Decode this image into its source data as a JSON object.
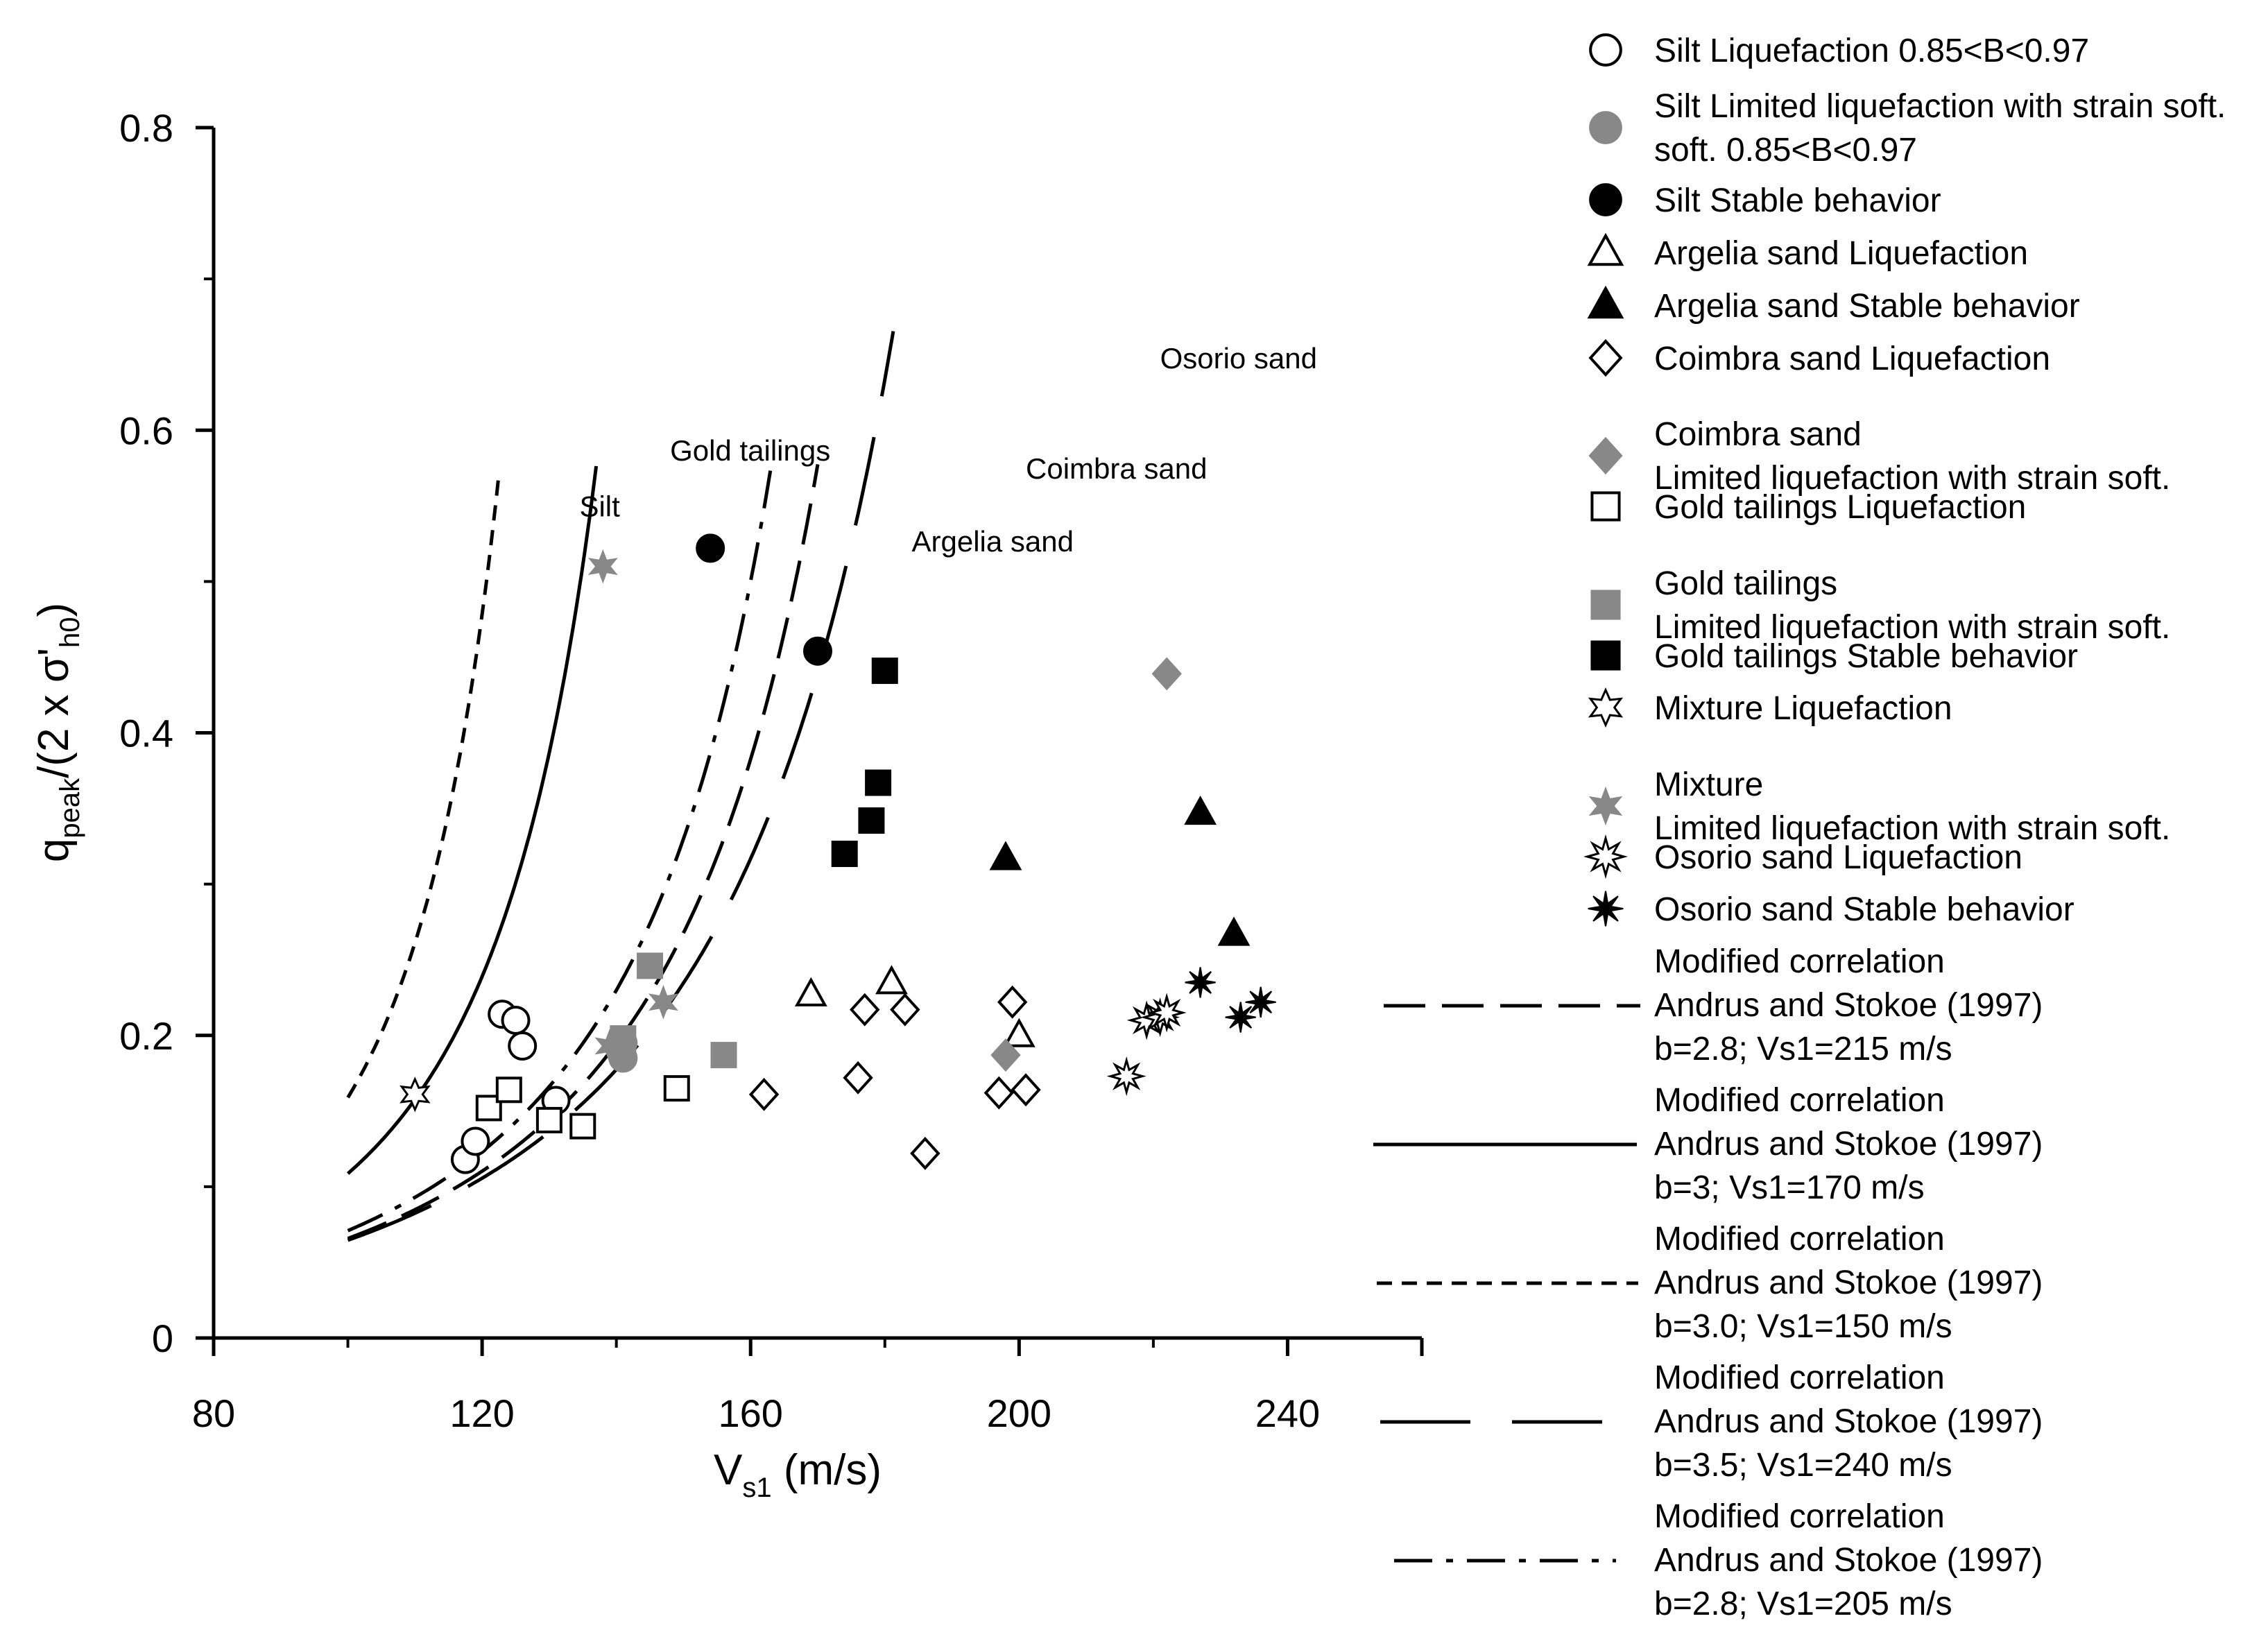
{
  "chart_data": {
    "type": "scatter",
    "title": "",
    "xlabel": {
      "main": "V",
      "sub": "s1",
      "unit": " (m/s)"
    },
    "ylabel": {
      "q": "q",
      "peak": "peak",
      "rest": "/(2 x σ'",
      "h0": "h0",
      "close": ")"
    },
    "xlim": [
      80,
      260
    ],
    "ylim": [
      0,
      0.8
    ],
    "xticks": [
      80,
      120,
      160,
      200,
      240
    ],
    "xtick_labels": [
      "80",
      "120",
      "160",
      "200",
      "240"
    ],
    "yticks": [
      0,
      0.2,
      0.4,
      0.6,
      0.8
    ],
    "ytick_labels": [
      "0",
      "0.2",
      "0.4",
      "0.6",
      "0.8"
    ],
    "grid": false,
    "legend_position": "right",
    "series": [
      {
        "name": "Silt Liquefaction 0.85<B<0.97",
        "label_lines": [
          "Silt Liquefaction 0.85<B<0.97"
        ],
        "marker": "circle",
        "color": "#000000",
        "filled": false,
        "points": [
          [
            117.5,
            0.118
          ],
          [
            119,
            0.13
          ],
          [
            123,
            0.214
          ],
          [
            125,
            0.21
          ],
          [
            126,
            0.193
          ],
          [
            131,
            0.157
          ]
        ]
      },
      {
        "name": "Silt Limited liquefaction with strain soft. 0.85<B<0.97",
        "label_lines": [
          "Silt Limited liquefaction with strain soft.",
          "soft. 0.85<B<0.97"
        ],
        "marker": "circle",
        "color": "#888888",
        "filled": true,
        "points": [
          [
            141,
            0.185
          ],
          [
            141,
            0.195
          ]
        ]
      },
      {
        "name": "Silt Stable behavior",
        "label_lines": [
          "Silt Stable behavior"
        ],
        "marker": "circle",
        "color": "#000000",
        "filled": true,
        "points": [
          [
            154,
            0.522
          ],
          [
            170,
            0.454
          ]
        ]
      },
      {
        "name": "Argelia sand Liquefaction",
        "label_lines": [
          "Argelia sand Liquefaction"
        ],
        "marker": "triangle",
        "color": "#000000",
        "filled": false,
        "points": [
          [
            169,
            0.227
          ],
          [
            181,
            0.235
          ],
          [
            200,
            0.2
          ]
        ]
      },
      {
        "name": "Argelia sand Stable behavior",
        "label_lines": [
          "Argelia sand Stable behavior"
        ],
        "marker": "triangle",
        "color": "#000000",
        "filled": true,
        "points": [
          [
            198,
            0.317
          ],
          [
            227,
            0.347
          ],
          [
            232,
            0.267
          ]
        ]
      },
      {
        "name": "Coimbra sand Liquefaction",
        "label_lines": [
          "Coimbra sand Liquefaction"
        ],
        "marker": "diamond",
        "color": "#000000",
        "filled": false,
        "points": [
          [
            162,
            0.161
          ],
          [
            176,
            0.172
          ],
          [
            177,
            0.217
          ],
          [
            183,
            0.217
          ],
          [
            186,
            0.122
          ],
          [
            197,
            0.162
          ],
          [
            199,
            0.222
          ],
          [
            201,
            0.164
          ]
        ]
      },
      {
        "name": "Coimbra sand Limited liquefaction with strain soft.",
        "label_lines": [
          "Coimbra sand",
          "Limited liquefaction with strain soft."
        ],
        "marker": "diamond",
        "color": "#888888",
        "filled": true,
        "points": [
          [
            198,
            0.187
          ],
          [
            222,
            0.439
          ]
        ]
      },
      {
        "name": "Gold tailings Liquefaction",
        "label_lines": [
          "Gold tailings Liquefaction"
        ],
        "marker": "square",
        "color": "#000000",
        "filled": false,
        "points": [
          [
            121,
            0.152
          ],
          [
            124,
            0.164
          ],
          [
            130,
            0.144
          ],
          [
            135,
            0.14
          ],
          [
            149,
            0.165
          ]
        ]
      },
      {
        "name": "Gold tailings Limited liquefaction with strain soft.",
        "label_lines": [
          "Gold tailings",
          "Limited liquefaction with strain soft."
        ],
        "marker": "square",
        "color": "#888888",
        "filled": true,
        "points": [
          [
            141,
            0.198
          ],
          [
            145,
            0.246
          ],
          [
            156,
            0.187
          ]
        ]
      },
      {
        "name": "Gold tailings Stable behavior",
        "label_lines": [
          "Gold tailings Stable behavior"
        ],
        "marker": "square",
        "color": "#000000",
        "filled": true,
        "points": [
          [
            174,
            0.32
          ],
          [
            178,
            0.342
          ],
          [
            179,
            0.367
          ],
          [
            180,
            0.441
          ]
        ]
      },
      {
        "name": "Mixture Liquefaction",
        "label_lines": [
          "Mixture Liquefaction"
        ],
        "marker": "star6-open",
        "color": "#000000",
        "filled": false,
        "points": [
          [
            110,
            0.161
          ]
        ]
      },
      {
        "name": "Mixture Limited liquefaction with strain soft.",
        "label_lines": [
          "Mixture",
          "Limited liquefaction with strain soft."
        ],
        "marker": "star6",
        "color": "#888888",
        "filled": true,
        "points": [
          [
            138,
            0.51
          ],
          [
            139,
            0.193
          ],
          [
            147,
            0.222
          ]
        ]
      },
      {
        "name": "Osorio sand Liquefaction",
        "label_lines": [
          "Osorio sand Liquefaction"
        ],
        "marker": "burst-open",
        "color": "#000000",
        "filled": false,
        "points": [
          [
            216,
            0.173
          ],
          [
            219,
            0.21
          ],
          [
            221,
            0.212
          ],
          [
            222,
            0.215
          ]
        ]
      },
      {
        "name": "Osorio sand Stable behavior",
        "label_lines": [
          "Osorio sand Stable behavior"
        ],
        "marker": "burst",
        "color": "#000000",
        "filled": true,
        "points": [
          [
            227,
            0.235
          ],
          [
            233,
            0.212
          ],
          [
            236,
            0.222
          ]
        ]
      }
    ],
    "curves": [
      {
        "name": "Silt",
        "label": "Silt",
        "style": "short-dash",
        "b": 3.0,
        "vs1": 150,
        "label_at": [
          134.5,
          0.543
        ]
      },
      {
        "name": "Gold tailings",
        "label": "Gold tailings",
        "style": "solid",
        "b": 3,
        "vs1": 170,
        "label_at": [
          148,
          0.58
        ]
      },
      {
        "name": "Argelia sand",
        "label": "Argelia sand",
        "style": "dash-dot",
        "b": 2.8,
        "vs1": 205,
        "label_at": [
          184,
          0.52
        ]
      },
      {
        "name": "Coimbra sand",
        "label": "Coimbra sand",
        "style": "medium-dash",
        "b": 2.8,
        "vs1": 215,
        "label_at": [
          201,
          0.568
        ]
      },
      {
        "name": "Osorio sand",
        "label": "Osorio sand",
        "style": "long-dash",
        "b": 3.5,
        "vs1": 240,
        "label_at": [
          221,
          0.641
        ]
      }
    ],
    "correlation_legend": [
      {
        "style": "medium-dash",
        "lines": [
          "Modified correlation",
          "Andrus and Stokoe (1997)",
          "b=2.8; Vs1=215 m/s"
        ]
      },
      {
        "style": "solid",
        "lines": [
          "Modified correlation",
          "Andrus and Stokoe (1997)",
          "b=3; Vs1=170 m/s"
        ]
      },
      {
        "style": "short-dash",
        "lines": [
          "Modified correlation",
          "Andrus and Stokoe (1997)",
          "b=3.0; Vs1=150 m/s"
        ]
      },
      {
        "style": "long-dash",
        "lines": [
          "Modified correlation",
          "Andrus and Stokoe (1997)",
          "b=3.5; Vs1=240 m/s"
        ]
      },
      {
        "style": "dash-dot",
        "lines": [
          "Modified correlation",
          "Andrus and Stokoe (1997)",
          "b=2.8; Vs1=205 m/s"
        ]
      }
    ]
  }
}
